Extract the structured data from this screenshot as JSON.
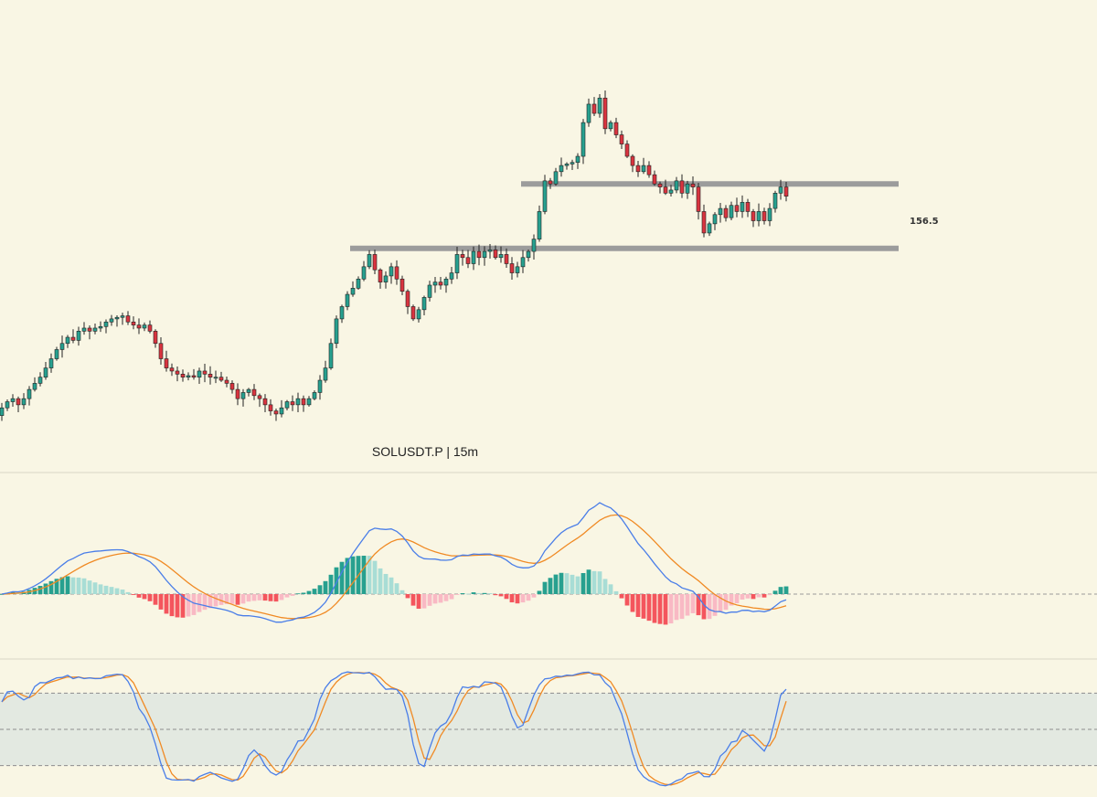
{
  "colors": {
    "background": "#f9f6e4",
    "up": "#27a08f",
    "down": "#d9343f",
    "level_line": "#9c9c9c",
    "macd_line": "#4a7ee8",
    "signal_line": "#f08a24",
    "hist_up_strong": "#27a08f",
    "hist_up_weak": "#a8ddd5",
    "hist_down_strong": "#f4555d",
    "hist_down_weak": "#f9b9c4",
    "stoch_k": "#4a7ee8",
    "stoch_d": "#f08a24",
    "stoch_band": "#e3e9e1",
    "divider": "#d9d6c6"
  },
  "chart_data": [
    {
      "type": "candlestick",
      "title": "SOLUSDT.P | 15m",
      "price_range": [
        149.4,
        164.0
      ],
      "levels": [
        {
          "price": 156.5,
          "label": "156.5"
        },
        {
          "price": 158.6,
          "label": ""
        }
      ],
      "closes": [
        151.3,
        151.5,
        151.6,
        151.4,
        151.6,
        151.9,
        152.1,
        152.3,
        152.6,
        152.9,
        153.2,
        153.4,
        153.6,
        153.5,
        153.8,
        153.9,
        153.8,
        153.9,
        153.95,
        154.1,
        154.2,
        154.25,
        154.3,
        154.1,
        154.0,
        153.9,
        154.0,
        153.8,
        153.4,
        152.9,
        152.6,
        152.5,
        152.4,
        152.3,
        152.35,
        152.3,
        152.5,
        152.4,
        152.3,
        152.3,
        152.2,
        152.1,
        151.9,
        151.6,
        151.8,
        151.9,
        151.7,
        151.6,
        151.4,
        151.2,
        151.1,
        151.3,
        151.5,
        151.4,
        151.6,
        151.4,
        151.6,
        151.8,
        152.2,
        152.6,
        153.4,
        154.2,
        154.6,
        155.0,
        155.2,
        155.5,
        155.9,
        156.3,
        155.8,
        155.4,
        155.6,
        155.9,
        155.5,
        155.1,
        154.6,
        154.2,
        154.5,
        154.9,
        155.3,
        155.4,
        155.3,
        155.5,
        155.7,
        156.3,
        156.2,
        156.0,
        156.4,
        156.2,
        156.4,
        156.45,
        156.2,
        156.3,
        156.0,
        155.7,
        155.9,
        156.2,
        156.4,
        156.8,
        157.7,
        158.7,
        158.6,
        159.0,
        159.2,
        159.25,
        159.3,
        159.5,
        160.6,
        161.2,
        160.9,
        161.4,
        160.4,
        160.6,
        160.2,
        159.9,
        159.5,
        159.2,
        159.0,
        159.2,
        158.9,
        158.6,
        158.5,
        158.3,
        158.4,
        158.7,
        158.3,
        158.6,
        158.5,
        157.7,
        157.0,
        157.3,
        157.6,
        157.8,
        157.5,
        157.9,
        157.7,
        158.0,
        157.7,
        157.4,
        157.7,
        157.4,
        157.8,
        158.3,
        158.5,
        158.2
      ],
      "stoch_levels": [
        80,
        50,
        20
      ]
    }
  ]
}
